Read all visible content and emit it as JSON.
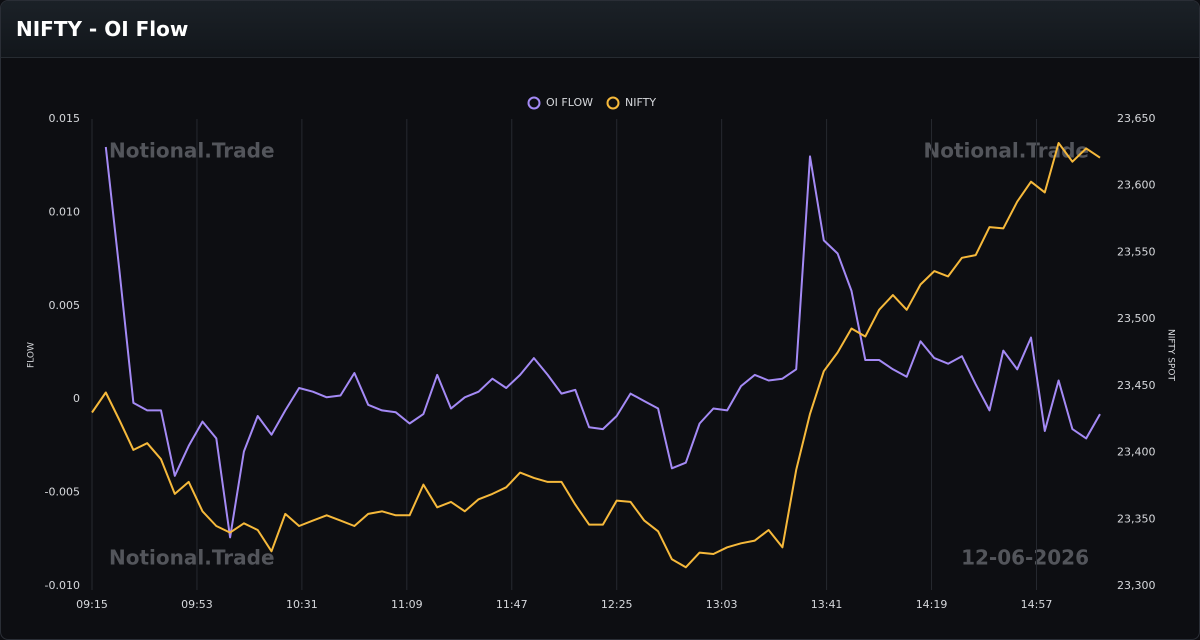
{
  "chart_data": {
    "type": "line",
    "title": "NIFTY - OI Flow",
    "y_label": "FLOW",
    "y2_label": "NIFTY SPOT",
    "watermarks": [
      "Notional.Trade",
      "Notional.Trade",
      "Notional.Trade"
    ],
    "date_label": "12-06-2026",
    "x": [
      "09:15",
      "09:20",
      "09:25",
      "09:30",
      "09:35",
      "09:40",
      "09:45",
      "09:50",
      "09:55",
      "10:00",
      "10:05",
      "10:10",
      "10:15",
      "10:20",
      "10:25",
      "10:30",
      "10:35",
      "10:40",
      "10:45",
      "10:50",
      "10:55",
      "11:00",
      "11:05",
      "11:10",
      "11:15",
      "11:20",
      "11:25",
      "11:30",
      "11:35",
      "11:40",
      "11:45",
      "11:50",
      "11:55",
      "12:00",
      "12:05",
      "12:10",
      "12:15",
      "12:20",
      "12:25",
      "12:30",
      "12:35",
      "12:40",
      "12:45",
      "12:50",
      "12:55",
      "13:00",
      "13:05",
      "13:10",
      "13:15",
      "13:20",
      "13:25",
      "13:30",
      "13:35",
      "13:40",
      "13:45",
      "13:50",
      "13:55",
      "14:00",
      "14:05",
      "14:10",
      "14:15",
      "14:20",
      "14:25",
      "14:30",
      "14:35",
      "14:40",
      "14:45",
      "14:50",
      "14:55",
      "15:00",
      "15:05",
      "15:10",
      "15:15",
      "15:20"
    ],
    "xticks": [
      "09:15",
      "09:53",
      "10:31",
      "11:09",
      "11:47",
      "12:25",
      "13:03",
      "13:41",
      "14:19",
      "14:57"
    ],
    "ylim": [
      -0.01,
      0.015
    ],
    "yticks": [
      {
        "value": -0.01,
        "label": "-0.010"
      },
      -0.005,
      0,
      0.005,
      {
        "value": 0.01,
        "label": "0.010"
      },
      0.015
    ],
    "y2lim": [
      23300,
      23650
    ],
    "y2ticks": [
      {
        "value": 23300,
        "label": "23,300"
      },
      {
        "value": 23350,
        "label": "23,350"
      },
      {
        "value": 23400,
        "label": "23,400"
      },
      {
        "value": 23450,
        "label": "23,450"
      },
      {
        "value": 23500,
        "label": "23,500"
      },
      {
        "value": 23550,
        "label": "23,550"
      },
      {
        "value": 23600,
        "label": "23,600"
      },
      {
        "value": 23650,
        "label": "23,650"
      }
    ],
    "grid": "x",
    "legend": "top",
    "series": [
      {
        "name": "OI FLOW",
        "color": "#a48af5",
        "values": [
          null,
          0.0135,
          0.0068,
          -0.0002,
          -0.0006,
          -0.0006,
          -0.0041,
          -0.0025,
          -0.0012,
          -0.0021,
          -0.0074,
          -0.0028,
          -0.0009,
          -0.0019,
          -0.0006,
          0.0006,
          0.0004,
          0.0001,
          0.0002,
          0.0014,
          -0.0003,
          -0.0006,
          -0.0007,
          -0.0013,
          -0.0008,
          0.0013,
          -0.0005,
          0.0001,
          0.0004,
          0.0011,
          0.0006,
          0.0013,
          0.0022,
          0.0013,
          0.0003,
          0.0005,
          -0.0015,
          -0.0016,
          -0.0009,
          0.0003,
          -0.0001,
          -0.0005,
          -0.0037,
          -0.0034,
          -0.0013,
          -0.0005,
          -0.0006,
          0.0007,
          0.0013,
          0.001,
          0.0011,
          0.0016,
          0.013,
          0.0085,
          0.0078,
          0.0058,
          0.0021,
          0.0021,
          0.0016,
          0.0012,
          0.0031,
          0.0022,
          0.0019,
          0.0023,
          0.0008,
          -0.0006,
          0.0026,
          0.0016,
          0.0033,
          -0.0017,
          0.001,
          -0.0016,
          -0.0021,
          -0.0008
        ]
      },
      {
        "name": "NIFTY",
        "color": "#f6b93b",
        "axis": "y2",
        "values": [
          23430,
          23445,
          23424,
          23402,
          23407,
          23395,
          23369,
          23378,
          23356,
          23345,
          23340,
          23347,
          23342,
          23326,
          23354,
          23345,
          23349,
          23353,
          23349,
          23345,
          23354,
          23356,
          23353,
          23353,
          23376,
          23359,
          23363,
          23356,
          23365,
          23369,
          23374,
          23385,
          23381,
          23378,
          23378,
          23361,
          23346,
          23346,
          23364,
          23363,
          23349,
          23341,
          23320,
          23314,
          23325,
          23324,
          23329,
          23332,
          23334,
          23342,
          23329,
          23387,
          23429,
          23461,
          23475,
          23493,
          23487,
          23507,
          23518,
          23507,
          23526,
          23536,
          23532,
          23546,
          23548,
          23569,
          23568,
          23588,
          23603,
          23595,
          23632,
          23618,
          23628,
          23621
        ]
      }
    ]
  }
}
